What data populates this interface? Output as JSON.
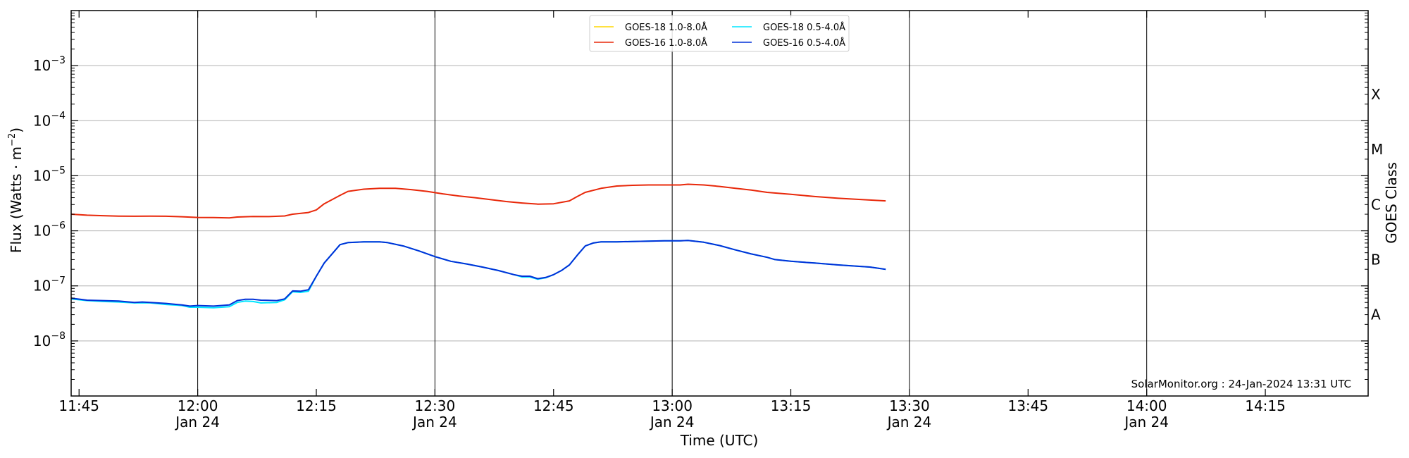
{
  "chart_data": {
    "type": "line",
    "xlabel": "Time (UTC)",
    "ylabel_main": "Flux (Watts · m",
    "ylabel_sup": "−2",
    "ylabel_close": ")",
    "right_label": "GOES Class",
    "credit": "SolarMonitor.org : 24-Jan-2024 13:31 UTC",
    "y_scale": "log",
    "ylim": [
      1e-09,
      0.01
    ],
    "y_ticks": [
      {
        "value": 1e-08,
        "base": "10",
        "exp": "−8"
      },
      {
        "value": 1e-07,
        "base": "10",
        "exp": "−7"
      },
      {
        "value": 1e-06,
        "base": "10",
        "exp": "−6"
      },
      {
        "value": 1e-05,
        "base": "10",
        "exp": "−5"
      },
      {
        "value": 0.0001,
        "base": "10",
        "exp": "−4"
      },
      {
        "value": 0.001,
        "base": "10",
        "exp": "−3"
      }
    ],
    "goes_classes": [
      {
        "label": "A",
        "value": 3e-08
      },
      {
        "label": "B",
        "value": 3e-07
      },
      {
        "label": "C",
        "value": 3e-06
      },
      {
        "label": "M",
        "value": 3e-05
      },
      {
        "label": "X",
        "value": 0.0003
      }
    ],
    "x_range": [
      "11:44",
      "14:28"
    ],
    "x_ticks": [
      {
        "time": "11:45",
        "line1": "11:45",
        "line2": ""
      },
      {
        "time": "12:00",
        "line1": "12:00",
        "line2": "Jan 24"
      },
      {
        "time": "12:15",
        "line1": "12:15",
        "line2": ""
      },
      {
        "time": "12:30",
        "line1": "12:30",
        "line2": "Jan 24"
      },
      {
        "time": "12:45",
        "line1": "12:45",
        "line2": ""
      },
      {
        "time": "13:00",
        "line1": "13:00",
        "line2": "Jan 24"
      },
      {
        "time": "13:15",
        "line1": "13:15",
        "line2": ""
      },
      {
        "time": "13:30",
        "line1": "13:30",
        "line2": "Jan 24"
      },
      {
        "time": "13:45",
        "line1": "13:45",
        "line2": ""
      },
      {
        "time": "14:00",
        "line1": "14:00",
        "line2": "Jan 24"
      },
      {
        "time": "14:15",
        "line1": "14:15",
        "line2": ""
      }
    ],
    "vertical_lines": [
      "12:00",
      "12:30",
      "13:00",
      "13:30",
      "14:00"
    ],
    "legend_position": "top-center",
    "legend": [
      {
        "label": "GOES-18 1.0-8.0Å",
        "color": "#ffd700"
      },
      {
        "label": "GOES-18 0.5-4.0Å",
        "color": "#00e5ff"
      },
      {
        "label": "GOES-16 1.0-8.0Å",
        "color": "#e8280a"
      },
      {
        "label": "GOES-16 0.5-4.0Å",
        "color": "#0030d8"
      }
    ],
    "series": [
      {
        "name": "GOES-18 0.5-4.0Å",
        "color": "#00e5ff",
        "points": [
          [
            "11:44",
            5.8e-08
          ],
          [
            "11:46",
            5.4e-08
          ],
          [
            "11:48",
            5.2e-08
          ],
          [
            "11:50",
            5.1e-08
          ],
          [
            "11:52",
            4.9e-08
          ],
          [
            "11:54",
            4.9e-08
          ],
          [
            "11:56",
            4.6e-08
          ],
          [
            "11:58",
            4.4e-08
          ],
          [
            "11:59",
            4.1e-08
          ],
          [
            "12:00",
            4.1e-08
          ],
          [
            "12:02",
            4e-08
          ],
          [
            "12:04",
            4.2e-08
          ],
          [
            "12:05",
            5e-08
          ],
          [
            "12:06",
            5.3e-08
          ],
          [
            "12:07",
            5.2e-08
          ],
          [
            "12:08",
            4.9e-08
          ],
          [
            "12:10",
            5e-08
          ],
          [
            "12:11",
            5.6e-08
          ],
          [
            "12:12",
            7.8e-08
          ],
          [
            "12:13",
            7.6e-08
          ],
          [
            "12:14",
            8e-08
          ],
          [
            "12:15",
            1.5e-07
          ],
          [
            "12:16",
            2.6e-07
          ],
          [
            "12:18",
            5.6e-07
          ],
          [
            "12:19",
            6.1e-07
          ],
          [
            "12:21",
            6.3e-07
          ],
          [
            "12:23",
            6.3e-07
          ],
          [
            "12:24",
            6.1e-07
          ],
          [
            "12:26",
            5.3e-07
          ],
          [
            "12:28",
            4.3e-07
          ],
          [
            "12:30",
            3.4e-07
          ],
          [
            "12:32",
            2.8e-07
          ],
          [
            "12:34",
            2.5e-07
          ],
          [
            "12:36",
            2.2e-07
          ],
          [
            "12:38",
            1.9e-07
          ],
          [
            "12:40",
            1.6e-07
          ],
          [
            "12:41",
            1.45e-07
          ],
          [
            "12:42",
            1.45e-07
          ],
          [
            "12:43",
            1.32e-07
          ],
          [
            "12:44",
            1.4e-07
          ],
          [
            "12:45",
            1.6e-07
          ],
          [
            "12:46",
            1.9e-07
          ],
          [
            "12:47",
            2.4e-07
          ],
          [
            "12:48",
            3.6e-07
          ],
          [
            "12:49",
            5.3e-07
          ],
          [
            "12:50",
            6e-07
          ],
          [
            "12:51",
            6.3e-07
          ],
          [
            "12:53",
            6.3e-07
          ],
          [
            "12:55",
            6.4e-07
          ],
          [
            "12:57",
            6.5e-07
          ],
          [
            "12:59",
            6.6e-07
          ],
          [
            "13:01",
            6.6e-07
          ],
          [
            "13:02",
            6.7e-07
          ],
          [
            "13:04",
            6.2e-07
          ],
          [
            "13:06",
            5.4e-07
          ],
          [
            "13:08",
            4.5e-07
          ],
          [
            "13:10",
            3.8e-07
          ],
          [
            "13:12",
            3.3e-07
          ],
          [
            "13:13",
            3e-07
          ],
          [
            "13:15",
            2.8e-07
          ],
          [
            "13:18",
            2.6e-07
          ],
          [
            "13:21",
            2.4e-07
          ],
          [
            "13:25",
            2.2e-07
          ],
          [
            "13:27",
            2e-07
          ]
        ]
      },
      {
        "name": "GOES-16 1.0-8.0Å",
        "color": "#e8280a",
        "points": [
          [
            "11:44",
            2e-06
          ],
          [
            "11:46",
            1.92e-06
          ],
          [
            "11:48",
            1.88e-06
          ],
          [
            "11:50",
            1.85e-06
          ],
          [
            "11:52",
            1.84e-06
          ],
          [
            "11:54",
            1.85e-06
          ],
          [
            "11:56",
            1.84e-06
          ],
          [
            "11:58",
            1.8e-06
          ],
          [
            "12:00",
            1.75e-06
          ],
          [
            "12:02",
            1.74e-06
          ],
          [
            "12:04",
            1.72e-06
          ],
          [
            "12:05",
            1.78e-06
          ],
          [
            "12:07",
            1.82e-06
          ],
          [
            "12:09",
            1.81e-06
          ],
          [
            "12:11",
            1.86e-06
          ],
          [
            "12:12",
            2e-06
          ],
          [
            "12:14",
            2.15e-06
          ],
          [
            "12:15",
            2.4e-06
          ],
          [
            "12:16",
            3.1e-06
          ],
          [
            "12:18",
            4.4e-06
          ],
          [
            "12:19",
            5.2e-06
          ],
          [
            "12:21",
            5.7e-06
          ],
          [
            "12:23",
            5.9e-06
          ],
          [
            "12:25",
            5.9e-06
          ],
          [
            "12:27",
            5.6e-06
          ],
          [
            "12:29",
            5.2e-06
          ],
          [
            "12:31",
            4.7e-06
          ],
          [
            "12:33",
            4.3e-06
          ],
          [
            "12:35",
            4e-06
          ],
          [
            "12:37",
            3.7e-06
          ],
          [
            "12:39",
            3.4e-06
          ],
          [
            "12:41",
            3.2e-06
          ],
          [
            "12:43",
            3.05e-06
          ],
          [
            "12:45",
            3.1e-06
          ],
          [
            "12:47",
            3.5e-06
          ],
          [
            "12:48",
            4.2e-06
          ],
          [
            "12:49",
            5e-06
          ],
          [
            "12:51",
            5.9e-06
          ],
          [
            "12:53",
            6.5e-06
          ],
          [
            "12:55",
            6.7e-06
          ],
          [
            "12:57",
            6.8e-06
          ],
          [
            "12:59",
            6.8e-06
          ],
          [
            "13:01",
            6.8e-06
          ],
          [
            "13:02",
            7e-06
          ],
          [
            "13:04",
            6.8e-06
          ],
          [
            "13:06",
            6.4e-06
          ],
          [
            "13:08",
            5.9e-06
          ],
          [
            "13:10",
            5.5e-06
          ],
          [
            "13:12",
            5e-06
          ],
          [
            "13:15",
            4.6e-06
          ],
          [
            "13:18",
            4.2e-06
          ],
          [
            "13:21",
            3.9e-06
          ],
          [
            "13:24",
            3.7e-06
          ],
          [
            "13:27",
            3.5e-06
          ]
        ]
      },
      {
        "name": "GOES-16 0.5-4.0Å",
        "color": "#0030d8",
        "points": [
          [
            "11:44",
            6e-08
          ],
          [
            "11:46",
            5.5e-08
          ],
          [
            "11:48",
            5.4e-08
          ],
          [
            "11:50",
            5.3e-08
          ],
          [
            "11:52",
            5e-08
          ],
          [
            "11:53",
            5.1e-08
          ],
          [
            "11:54",
            5e-08
          ],
          [
            "11:56",
            4.8e-08
          ],
          [
            "11:58",
            4.5e-08
          ],
          [
            "11:59",
            4.3e-08
          ],
          [
            "12:00",
            4.4e-08
          ],
          [
            "12:02",
            4.3e-08
          ],
          [
            "12:04",
            4.5e-08
          ],
          [
            "12:05",
            5.4e-08
          ],
          [
            "12:06",
            5.7e-08
          ],
          [
            "12:07",
            5.7e-08
          ],
          [
            "12:08",
            5.5e-08
          ],
          [
            "12:10",
            5.4e-08
          ],
          [
            "12:11",
            5.8e-08
          ],
          [
            "12:12",
            8.1e-08
          ],
          [
            "12:13",
            8e-08
          ],
          [
            "12:14",
            8.5e-08
          ],
          [
            "12:15",
            1.5e-07
          ],
          [
            "12:16",
            2.6e-07
          ],
          [
            "12:18",
            5.6e-07
          ],
          [
            "12:19",
            6.1e-07
          ],
          [
            "12:21",
            6.3e-07
          ],
          [
            "12:23",
            6.3e-07
          ],
          [
            "12:24",
            6.1e-07
          ],
          [
            "12:26",
            5.3e-07
          ],
          [
            "12:28",
            4.3e-07
          ],
          [
            "12:30",
            3.4e-07
          ],
          [
            "12:32",
            2.8e-07
          ],
          [
            "12:34",
            2.5e-07
          ],
          [
            "12:36",
            2.2e-07
          ],
          [
            "12:38",
            1.9e-07
          ],
          [
            "12:40",
            1.6e-07
          ],
          [
            "12:41",
            1.5e-07
          ],
          [
            "12:42",
            1.5e-07
          ],
          [
            "12:43",
            1.35e-07
          ],
          [
            "12:44",
            1.42e-07
          ],
          [
            "12:45",
            1.6e-07
          ],
          [
            "12:46",
            1.9e-07
          ],
          [
            "12:47",
            2.4e-07
          ],
          [
            "12:48",
            3.6e-07
          ],
          [
            "12:49",
            5.3e-07
          ],
          [
            "12:50",
            6e-07
          ],
          [
            "12:51",
            6.3e-07
          ],
          [
            "12:53",
            6.3e-07
          ],
          [
            "12:55",
            6.4e-07
          ],
          [
            "12:57",
            6.5e-07
          ],
          [
            "12:59",
            6.6e-07
          ],
          [
            "13:01",
            6.6e-07
          ],
          [
            "13:02",
            6.7e-07
          ],
          [
            "13:04",
            6.2e-07
          ],
          [
            "13:06",
            5.4e-07
          ],
          [
            "13:08",
            4.5e-07
          ],
          [
            "13:10",
            3.8e-07
          ],
          [
            "13:12",
            3.3e-07
          ],
          [
            "13:13",
            3e-07
          ],
          [
            "13:15",
            2.8e-07
          ],
          [
            "13:18",
            2.6e-07
          ],
          [
            "13:21",
            2.4e-07
          ],
          [
            "13:25",
            2.2e-07
          ],
          [
            "13:27",
            2e-07
          ]
        ]
      }
    ]
  }
}
